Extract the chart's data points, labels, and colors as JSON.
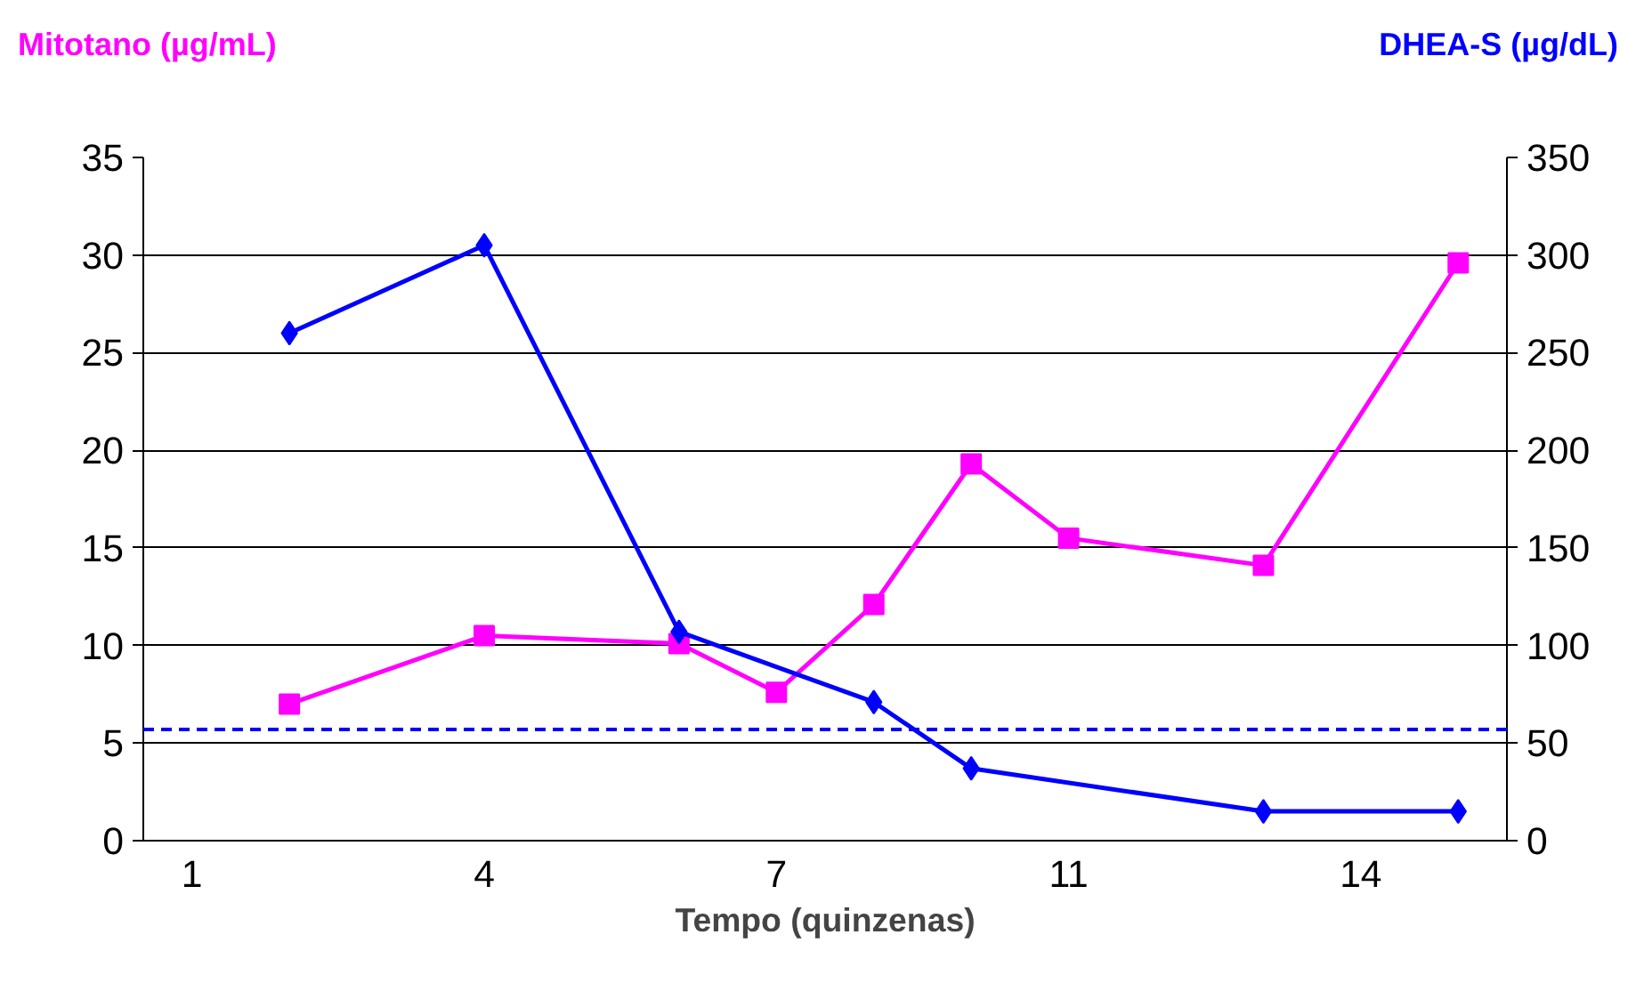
{
  "chart_data": {
    "type": "line",
    "categories": [
      "1",
      null,
      null,
      "4",
      null,
      null,
      "7",
      null,
      null,
      "11",
      null,
      null,
      "14",
      null
    ],
    "series": [
      {
        "color": "#ff00ff",
        "marker": "square",
        "axis": "y",
        "values": [
          null,
          7.0,
          null,
          10.5,
          null,
          10.1,
          7.6,
          12.1,
          19.3,
          15.5,
          null,
          14.1,
          null,
          29.6
        ]
      },
      {
        "color": "#0000ff",
        "marker": "diamond",
        "axis": "y2",
        "values": [
          null,
          260,
          null,
          305,
          null,
          107,
          null,
          71,
          37,
          null,
          null,
          15,
          null,
          15
        ]
      }
    ],
    "xlabel": "Tempo (quinzenas)",
    "ylabel": "Mitotano (µg/mL)",
    "y2label": "DHEA-S (µg/dL)",
    "ylim": [
      0,
      35
    ],
    "yticks": [
      0,
      5,
      10,
      15,
      20,
      25,
      30,
      35
    ],
    "y2lim": [
      0,
      350
    ],
    "y2ticks": [
      0,
      50,
      100,
      150,
      200,
      250,
      300,
      350
    ],
    "ref_lines": [
      {
        "axis": "y2",
        "value": 57,
        "color": "#0000ff",
        "line_style": "dashed",
        "label": null
      }
    ],
    "grid": "y"
  }
}
